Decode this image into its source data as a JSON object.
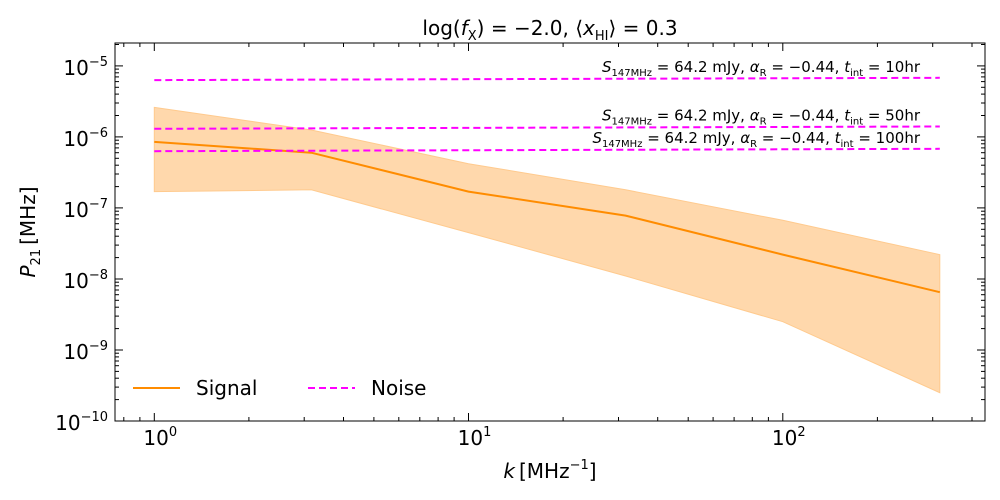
{
  "chart_data": {
    "type": "line",
    "title": "log(f_X) = −2.0, ⟨x_HI⟩ = 0.3",
    "title_parts": {
      "lhs1": "log(",
      "f": "f",
      "fsub": "X",
      "mid": ") = −2.0, ⟨",
      "x": "x",
      "xsub": "HI",
      "rhs": "⟩ = 0.3"
    },
    "xlabel": {
      "var": "k",
      "unit": "[MHz",
      "exp": "−1",
      "close": "]"
    },
    "ylabel": {
      "var": "P",
      "sub": "21",
      "unit": "[MHz]"
    },
    "x_scale": "log",
    "y_scale": "log",
    "xlim": [
      0.75,
      440
    ],
    "ylim": [
      1e-10,
      2.1e-05
    ],
    "x_ticks": [
      {
        "base": "10",
        "exp": "0",
        "value": 1
      },
      {
        "base": "10",
        "exp": "1",
        "value": 10
      },
      {
        "base": "10",
        "exp": "2",
        "value": 100
      }
    ],
    "y_ticks": [
      {
        "base": "10",
        "exp": "−10",
        "value": 1e-10
      },
      {
        "base": "10",
        "exp": "−9",
        "value": 1e-09
      },
      {
        "base": "10",
        "exp": "−8",
        "value": 1e-08
      },
      {
        "base": "10",
        "exp": "−7",
        "value": 1e-07
      },
      {
        "base": "10",
        "exp": "−6",
        "value": 1e-06
      },
      {
        "base": "10",
        "exp": "−5",
        "value": 1e-05
      }
    ],
    "grid": false,
    "legend_position": "bottom-left",
    "series": [
      {
        "name": "Signal",
        "style": "solid",
        "color": "#ff8c00",
        "band_color": "#ffd6a8",
        "x": [
          1,
          3.16,
          10,
          31.6,
          100,
          316
        ],
        "y": [
          8.5e-07,
          6e-07,
          1.7e-07,
          7.8e-08,
          2.2e-08,
          6.5e-09
        ],
        "lower": [
          1.7e-07,
          1.8e-07,
          4.5e-08,
          1.1e-08,
          2.5e-09,
          2.5e-10
        ],
        "upper": [
          2.6e-06,
          1.25e-06,
          4.2e-07,
          1.8e-07,
          6.7e-08,
          2.2e-08
        ]
      },
      {
        "name": "Noise",
        "style": "dashed",
        "color": "#ff00ff",
        "lines": [
          {
            "x": [
              1,
              316
            ],
            "y": [
              6.3e-06,
              6.8e-06
            ],
            "label": {
              "s": "S",
              "ssub": "147MHz",
              "seq": " = 64.2 mJy,  ",
              "a": "α",
              "asub": "R",
              "aeq": " = −0.44,  ",
              "t": "t",
              "tsub": "int",
              "teq": " = 10hr"
            }
          },
          {
            "x": [
              1,
              316
            ],
            "y": [
              1.3e-06,
              1.4e-06
            ],
            "label": {
              "s": "S",
              "ssub": "147MHz",
              "seq": " = 64.2 mJy,  ",
              "a": "α",
              "asub": "R",
              "aeq": " = −0.44,  ",
              "t": "t",
              "tsub": "int",
              "teq": " = 50hr"
            }
          },
          {
            "x": [
              1,
              316
            ],
            "y": [
              6.3e-07,
              6.8e-07
            ],
            "label": {
              "s": "S",
              "ssub": "147MHz",
              "seq": " = 64.2 mJy,  ",
              "a": "α",
              "asub": "R",
              "aeq": " = −0.44,  ",
              "t": "t",
              "tsub": "int",
              "teq": " = 100hr"
            }
          }
        ]
      }
    ]
  }
}
